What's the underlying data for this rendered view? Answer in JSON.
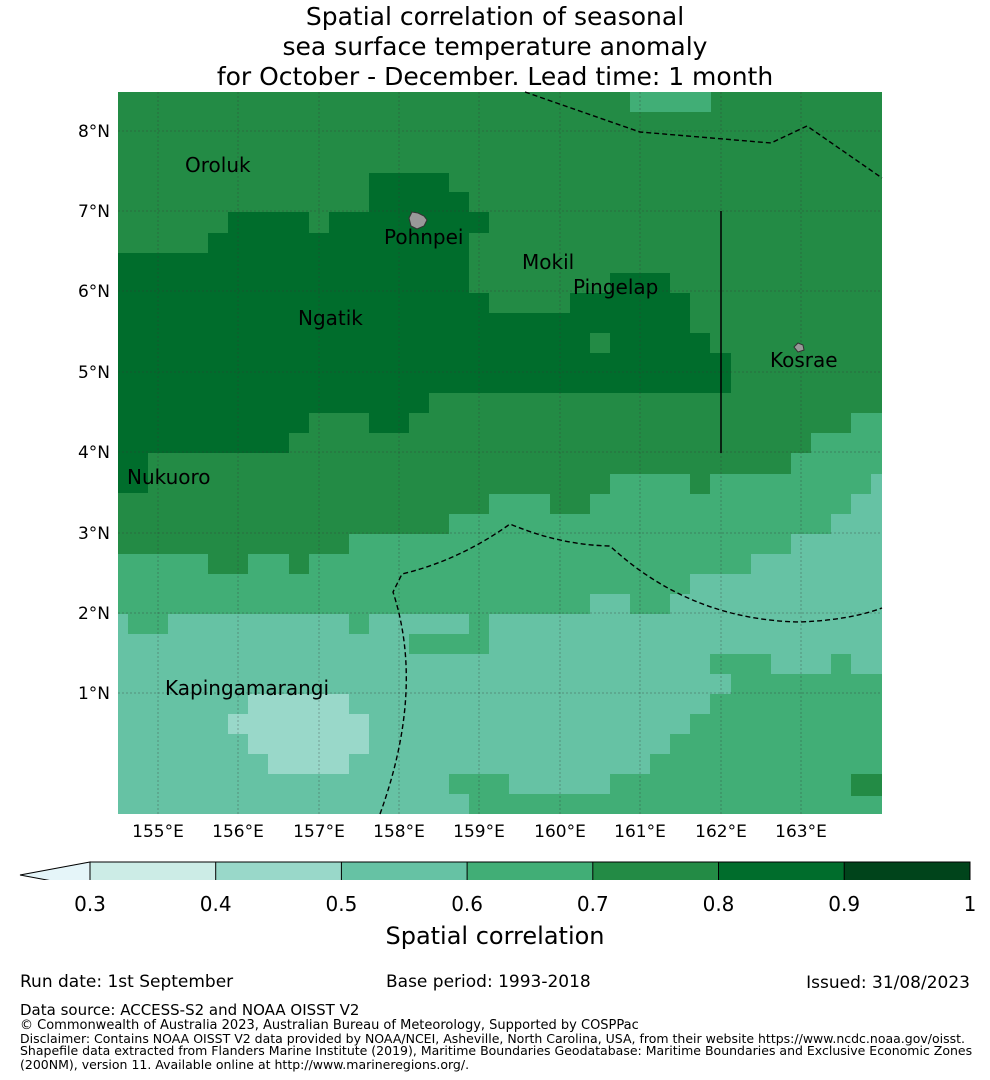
{
  "title": {
    "line1": "Spatial correlation of seasonal",
    "line2": "sea surface temperature anomaly",
    "line3": "for October - December. Lead time: 1 month"
  },
  "map": {
    "lat_labels": [
      "8°N",
      "7°N",
      "6°N",
      "5°N",
      "4°N",
      "3°N",
      "2°N",
      "1°N"
    ],
    "lon_labels": [
      "155°E",
      "156°E",
      "157°E",
      "158°E",
      "159°E",
      "160°E",
      "161°E",
      "162°E",
      "163°E"
    ],
    "places": {
      "oroluk": "Oroluk",
      "pohnpei": "Pohnpei",
      "mokil": "Mokil",
      "pingelap": "Pingelap",
      "ngatik": "Ngatik",
      "kosrae": "Kosrae",
      "nukuoro": "Nukuoro",
      "kapingamarangi": "Kapingamarangi"
    }
  },
  "colorbar": {
    "ticks": [
      "0.3",
      "0.4",
      "0.5",
      "0.6",
      "0.7",
      "0.8",
      "0.9",
      "1"
    ],
    "title": "Spatial correlation",
    "colors": [
      "#e5f5f9",
      "#ccece6",
      "#99d8c9",
      "#66c2a4",
      "#41ae76",
      "#238b45",
      "#006d2c",
      "#00441b"
    ]
  },
  "footer": {
    "run_date": "Run date: 1st September",
    "base_period": "Base period: 1993-2018",
    "issued": "Issued: 31/08/2023",
    "data_source": "Data source: ACCESS-S2 and NOAA OISST V2",
    "copyright": "© Commonwealth of Australia 2023, Australian Bureau of Meteorology, Supported by COSPPac",
    "disclaimer1": "Disclaimer: Contains NOAA OISST V2 data provided by NOAA/NCEI, Asheville, North Carolina, USA, from their website https://www.ncdc.noaa.gov/oisst.",
    "disclaimer2": "Shapefile data extracted from Flanders Marine Institute (2019), Maritime Boundaries Geodatabase: Maritime Boundaries and Exclusive Economic Zones",
    "disclaimer3": "(200NM), version 11. Available online at http://www.marineregions.org/."
  }
}
